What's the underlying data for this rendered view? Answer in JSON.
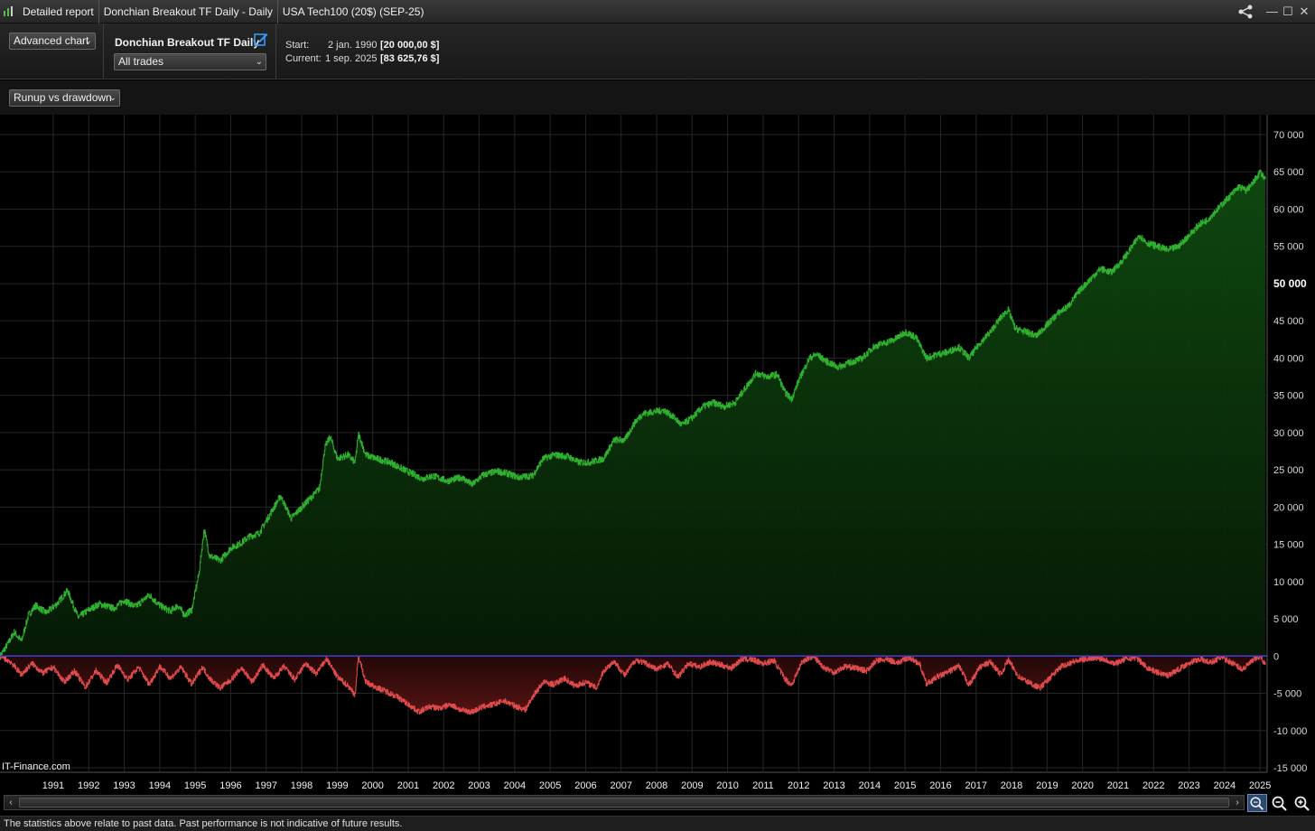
{
  "titlebar": {
    "segments": [
      "Detailed report",
      "Donchian Breakout TF Daily - Daily",
      "USA Tech100 (20$) (SEP-25)"
    ]
  },
  "toolbar": {
    "chart_mode": "Advanced chart",
    "strategy_name": "Donchian Breakout TF Daily",
    "trades_filter": "All trades",
    "start_label": "Start:",
    "start_date": "2 jan. 1990",
    "start_value": "[20 000,00 $]",
    "current_label": "Current:",
    "current_date": "1 sep. 2025",
    "current_value": "[83 625,76 $]",
    "view_select": "Runup vs drawdown"
  },
  "watermark": "IT-Finance.com",
  "footer": "The statistics above relate to past data. Past performance is not indicative of future results.",
  "colors": {
    "runup": "#2fb12f",
    "drawdown": "#e04a4a",
    "zero_line": "#4b3ad8",
    "background": "#000000",
    "grid": "#262626"
  },
  "chart_data": {
    "type": "area",
    "title": "Runup vs drawdown",
    "x_axis_ticks": [
      "1991",
      "1992",
      "1993",
      "1994",
      "1995",
      "1996",
      "1997",
      "1998",
      "1999",
      "2000",
      "2001",
      "2002",
      "2003",
      "2004",
      "2005",
      "2006",
      "2007",
      "2008",
      "2009",
      "2010",
      "2011",
      "2012",
      "2013",
      "2014",
      "2015",
      "2016",
      "2017",
      "2018",
      "2019",
      "2020",
      "2021",
      "2022",
      "2023",
      "2024",
      "2025"
    ],
    "y_axis_ticks": [
      "70 000",
      "65 000",
      "60 000",
      "55 000",
      "50 000",
      "45 000",
      "40 000",
      "35 000",
      "30 000",
      "25 000",
      "20 000",
      "15 000",
      "10 000",
      "5 000",
      "0",
      "-5 000",
      "-10 000",
      "-15 000"
    ],
    "ylim": [
      -15000,
      70000
    ],
    "xlim": [
      1990.0,
      2025.7
    ],
    "grid": true,
    "series": [
      {
        "name": "Runup",
        "points": [
          [
            1990.0,
            0
          ],
          [
            1990.2,
            1500
          ],
          [
            1990.4,
            3200
          ],
          [
            1990.6,
            2000
          ],
          [
            1990.8,
            5500
          ],
          [
            1991.0,
            6800
          ],
          [
            1991.3,
            5800
          ],
          [
            1991.6,
            7000
          ],
          [
            1991.9,
            8800
          ],
          [
            1992.2,
            5200
          ],
          [
            1992.5,
            6200
          ],
          [
            1992.8,
            7000
          ],
          [
            1993.2,
            6400
          ],
          [
            1993.5,
            7500
          ],
          [
            1993.8,
            6600
          ],
          [
            1994.2,
            8200
          ],
          [
            1994.5,
            6800
          ],
          [
            1994.8,
            6000
          ],
          [
            1995.0,
            6800
          ],
          [
            1995.2,
            5500
          ],
          [
            1995.4,
            6200
          ],
          [
            1995.6,
            11000
          ],
          [
            1995.75,
            17000
          ],
          [
            1995.9,
            13500
          ],
          [
            1996.2,
            12800
          ],
          [
            1996.5,
            14500
          ],
          [
            1996.8,
            15200
          ],
          [
            1997.0,
            16000
          ],
          [
            1997.3,
            16500
          ],
          [
            1997.6,
            19000
          ],
          [
            1997.9,
            21500
          ],
          [
            1998.2,
            18500
          ],
          [
            1998.5,
            20000
          ],
          [
            1998.8,
            21500
          ],
          [
            1999.0,
            22500
          ],
          [
            1999.15,
            28000
          ],
          [
            1999.3,
            29500
          ],
          [
            1999.5,
            26500
          ],
          [
            1999.8,
            27000
          ],
          [
            2000.0,
            26000
          ],
          [
            2000.1,
            29800
          ],
          [
            2000.3,
            27000
          ],
          [
            2000.6,
            26500
          ],
          [
            2001.0,
            26000
          ],
          [
            2001.3,
            25200
          ],
          [
            2001.6,
            24500
          ],
          [
            2001.9,
            23800
          ],
          [
            2002.2,
            24200
          ],
          [
            2002.6,
            23500
          ],
          [
            2003.0,
            24000
          ],
          [
            2003.3,
            23000
          ],
          [
            2003.6,
            24300
          ],
          [
            2004.0,
            24800
          ],
          [
            2004.3,
            24500
          ],
          [
            2004.6,
            24000
          ],
          [
            2005.0,
            24200
          ],
          [
            2005.3,
            26500
          ],
          [
            2005.6,
            27000
          ],
          [
            2006.0,
            26800
          ],
          [
            2006.3,
            26000
          ],
          [
            2006.6,
            26000
          ],
          [
            2007.0,
            26500
          ],
          [
            2007.3,
            29000
          ],
          [
            2007.6,
            29000
          ],
          [
            2007.9,
            31500
          ],
          [
            2008.1,
            32500
          ],
          [
            2008.4,
            32800
          ],
          [
            2008.7,
            33000
          ],
          [
            2009.0,
            32000
          ],
          [
            2009.2,
            31000
          ],
          [
            2009.5,
            32000
          ],
          [
            2009.8,
            33500
          ],
          [
            2010.1,
            34000
          ],
          [
            2010.4,
            33500
          ],
          [
            2010.7,
            34000
          ],
          [
            2011.0,
            36000
          ],
          [
            2011.3,
            38000
          ],
          [
            2011.6,
            37500
          ],
          [
            2011.9,
            37800
          ],
          [
            2012.1,
            35500
          ],
          [
            2012.3,
            34500
          ],
          [
            2012.5,
            37000
          ],
          [
            2012.8,
            40000
          ],
          [
            2013.0,
            40500
          ],
          [
            2013.3,
            39500
          ],
          [
            2013.6,
            38800
          ],
          [
            2014.0,
            39500
          ],
          [
            2014.3,
            40000
          ],
          [
            2014.6,
            41500
          ],
          [
            2014.9,
            42000
          ],
          [
            2015.2,
            42500
          ],
          [
            2015.5,
            43500
          ],
          [
            2015.8,
            42800
          ],
          [
            2016.1,
            40000
          ],
          [
            2016.4,
            40500
          ],
          [
            2016.7,
            40800
          ],
          [
            2017.0,
            41500
          ],
          [
            2017.3,
            40000
          ],
          [
            2017.6,
            42000
          ],
          [
            2017.9,
            43500
          ],
          [
            2018.2,
            45500
          ],
          [
            2018.4,
            46500
          ],
          [
            2018.6,
            44000
          ],
          [
            2018.9,
            43500
          ],
          [
            2019.2,
            43000
          ],
          [
            2019.5,
            44500
          ],
          [
            2019.8,
            46000
          ],
          [
            2020.1,
            47000
          ],
          [
            2020.4,
            49000
          ],
          [
            2020.7,
            50500
          ],
          [
            2021.0,
            52000
          ],
          [
            2021.3,
            51500
          ],
          [
            2021.6,
            53000
          ],
          [
            2021.9,
            55000
          ],
          [
            2022.1,
            56500
          ],
          [
            2022.3,
            55500
          ],
          [
            2022.6,
            55000
          ],
          [
            2022.9,
            54500
          ],
          [
            2023.2,
            55000
          ],
          [
            2023.5,
            56500
          ],
          [
            2023.8,
            58000
          ],
          [
            2024.0,
            58500
          ],
          [
            2024.3,
            60000
          ],
          [
            2024.6,
            61500
          ],
          [
            2024.9,
            63000
          ],
          [
            2025.1,
            62500
          ],
          [
            2025.3,
            63500
          ],
          [
            2025.5,
            65000
          ],
          [
            2025.65,
            64000
          ]
        ]
      },
      {
        "name": "Drawdown",
        "points": [
          [
            1990.0,
            0
          ],
          [
            1990.3,
            -800
          ],
          [
            1990.6,
            -2500
          ],
          [
            1990.9,
            -1000
          ],
          [
            1991.2,
            -2300
          ],
          [
            1991.5,
            -1500
          ],
          [
            1991.8,
            -3500
          ],
          [
            1992.1,
            -2000
          ],
          [
            1992.4,
            -4200
          ],
          [
            1992.7,
            -2000
          ],
          [
            1993.0,
            -3600
          ],
          [
            1993.3,
            -1200
          ],
          [
            1993.6,
            -3200
          ],
          [
            1993.9,
            -1500
          ],
          [
            1994.2,
            -3800
          ],
          [
            1994.5,
            -1400
          ],
          [
            1994.8,
            -3000
          ],
          [
            1995.1,
            -1500
          ],
          [
            1995.4,
            -3800
          ],
          [
            1995.7,
            -1500
          ],
          [
            1995.9,
            -3000
          ],
          [
            1996.2,
            -4300
          ],
          [
            1996.5,
            -3200
          ],
          [
            1996.8,
            -1600
          ],
          [
            1997.1,
            -3500
          ],
          [
            1997.4,
            -1200
          ],
          [
            1997.7,
            -3000
          ],
          [
            1998.0,
            -1400
          ],
          [
            1998.3,
            -3200
          ],
          [
            1998.6,
            -1000
          ],
          [
            1998.9,
            -2400
          ],
          [
            1999.2,
            -400
          ],
          [
            1999.5,
            -2800
          ],
          [
            1999.8,
            -4000
          ],
          [
            2000.0,
            -5200
          ],
          [
            2000.1,
            0
          ],
          [
            2000.3,
            -3500
          ],
          [
            2000.6,
            -4200
          ],
          [
            2000.9,
            -4800
          ],
          [
            2001.2,
            -5500
          ],
          [
            2001.5,
            -6500
          ],
          [
            2001.8,
            -7500
          ],
          [
            2002.1,
            -6800
          ],
          [
            2002.4,
            -7000
          ],
          [
            2002.7,
            -6500
          ],
          [
            2003.0,
            -7300
          ],
          [
            2003.3,
            -7500
          ],
          [
            2003.6,
            -6800
          ],
          [
            2003.9,
            -6500
          ],
          [
            2004.2,
            -6000
          ],
          [
            2004.5,
            -6700
          ],
          [
            2004.8,
            -7200
          ],
          [
            2005.0,
            -5500
          ],
          [
            2005.3,
            -3500
          ],
          [
            2005.6,
            -3800
          ],
          [
            2005.9,
            -3000
          ],
          [
            2006.2,
            -4000
          ],
          [
            2006.5,
            -3500
          ],
          [
            2006.8,
            -4300
          ],
          [
            2007.0,
            -2000
          ],
          [
            2007.3,
            -700
          ],
          [
            2007.6,
            -2600
          ],
          [
            2007.9,
            -500
          ],
          [
            2008.2,
            -1000
          ],
          [
            2008.5,
            -1800
          ],
          [
            2008.8,
            -1000
          ],
          [
            2009.1,
            -2800
          ],
          [
            2009.4,
            -1000
          ],
          [
            2009.7,
            -1500
          ],
          [
            2010.0,
            -800
          ],
          [
            2010.3,
            -1200
          ],
          [
            2010.6,
            -1600
          ],
          [
            2010.9,
            -400
          ],
          [
            2011.2,
            -500
          ],
          [
            2011.5,
            -1000
          ],
          [
            2011.8,
            -600
          ],
          [
            2012.1,
            -3000
          ],
          [
            2012.3,
            -3900
          ],
          [
            2012.6,
            -700
          ],
          [
            2012.9,
            0
          ],
          [
            2013.2,
            -1500
          ],
          [
            2013.5,
            -2200
          ],
          [
            2013.8,
            -1400
          ],
          [
            2014.1,
            -1600
          ],
          [
            2014.4,
            -2000
          ],
          [
            2014.7,
            -600
          ],
          [
            2015.0,
            -500
          ],
          [
            2015.3,
            -900
          ],
          [
            2015.6,
            -200
          ],
          [
            2015.9,
            -1000
          ],
          [
            2016.1,
            -3800
          ],
          [
            2016.4,
            -2800
          ],
          [
            2016.7,
            -2200
          ],
          [
            2017.0,
            -1300
          ],
          [
            2017.3,
            -3900
          ],
          [
            2017.6,
            -1500
          ],
          [
            2017.9,
            -800
          ],
          [
            2018.2,
            -2500
          ],
          [
            2018.4,
            -500
          ],
          [
            2018.7,
            -2800
          ],
          [
            2019.0,
            -3600
          ],
          [
            2019.3,
            -4300
          ],
          [
            2019.6,
            -2800
          ],
          [
            2019.9,
            -1400
          ],
          [
            2020.2,
            -800
          ],
          [
            2020.5,
            -500
          ],
          [
            2020.8,
            -200
          ],
          [
            2021.1,
            -400
          ],
          [
            2021.4,
            -1000
          ],
          [
            2021.7,
            -400
          ],
          [
            2022.0,
            -200
          ],
          [
            2022.3,
            -1500
          ],
          [
            2022.6,
            -2200
          ],
          [
            2022.9,
            -2600
          ],
          [
            2023.2,
            -1800
          ],
          [
            2023.5,
            -900
          ],
          [
            2023.8,
            -400
          ],
          [
            2024.1,
            -900
          ],
          [
            2024.4,
            -200
          ],
          [
            2024.7,
            -900
          ],
          [
            2025.0,
            -1800
          ],
          [
            2025.3,
            -600
          ],
          [
            2025.5,
            0
          ],
          [
            2025.65,
            -1200
          ]
        ]
      }
    ]
  }
}
